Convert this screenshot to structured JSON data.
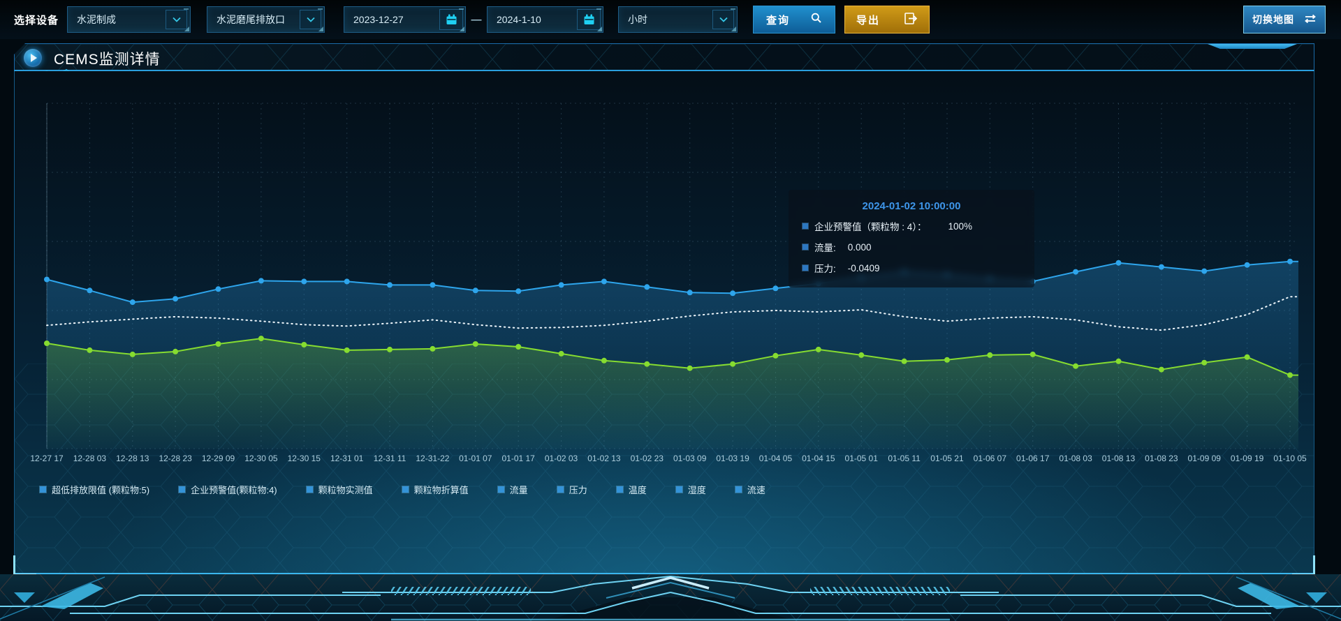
{
  "topbar": {
    "device_label": "选择设备",
    "selects": [
      {
        "value": "水泥制成"
      },
      {
        "value": "水泥磨尾排放口"
      }
    ],
    "date_start": "2023-12-27",
    "date_separator": "—",
    "date_end": "2024-1-10",
    "interval_value": "小时",
    "query_label": "查询",
    "export_label": "导出",
    "switch_map_label": "切换地图"
  },
  "panel": {
    "title": "CEMS监测详情"
  },
  "tooltip": {
    "title": "2024-01-02 10:00:00",
    "rows": [
      {
        "label": "企业预警值（颗粒物 : 4）：",
        "value": "100%"
      },
      {
        "label": "流量:",
        "value": "0.000"
      },
      {
        "label": "压力:",
        "value": "-0.0409"
      }
    ]
  },
  "legend": [
    "超低排放限值 (颗粒物:5)",
    "企业预警值(颗粒物:4)",
    "颗粒物实测值",
    "颗粒物折算值",
    "流量",
    "压力",
    "温度",
    "湿度",
    "流速"
  ],
  "colors": {
    "accent_cyan": "#29d3f5",
    "query_blue": "#1578b4",
    "export_orange": "#c98f16",
    "line_blue": "#2ea5ec",
    "line_green": "#86dc30",
    "line_dotted_white": "#eef6fb",
    "tooltip_title_blue": "#3e96ea",
    "legend_marker_blue": "#3493d8"
  },
  "chart_data": {
    "type": "line",
    "title": "",
    "xlabel": "",
    "ylabel": "",
    "x": [
      "12-27 17",
      "12-28 03",
      "12-28 13",
      "12-28 23",
      "12-29 09",
      "12-30 05",
      "12-30 15",
      "12-31 01",
      "12-31 11",
      "12-31-22",
      "01-01 07",
      "01-01 17",
      "01-02 03",
      "01-02 13",
      "01-02 23",
      "01-03 09",
      "01-03 19",
      "01-04 05",
      "01-04 15",
      "01-05 01",
      "01-05 11",
      "01-05 21",
      "01-06 07",
      "01-06 17",
      "01-08 03",
      "01-08 13",
      "01-08 23",
      "01-09 09",
      "01-09 19",
      "01-10 05"
    ],
    "y_axis_ticks": [],
    "ylim": [
      0,
      100
    ],
    "grid": "dashed",
    "legend_position": "bottom-left",
    "note": "no y-axis tick labels are shown on screen; series values are estimated as percent of plot height",
    "series": [
      {
        "name": "blue-line",
        "color": "#2ea5ec",
        "style": "solid",
        "markers": true,
        "area": true,
        "values": [
          49,
          45.8,
          42.4,
          43.4,
          46.2,
          48.6,
          48.4,
          48.4,
          47.4,
          47.4,
          45.8,
          45.6,
          47.4,
          48.4,
          46.8,
          45.2,
          45,
          46.4,
          47.8,
          49.6,
          51.2,
          50.4,
          49.2,
          48.4,
          51.2,
          53.8,
          52.6,
          51.4,
          53.2,
          54.2
        ]
      },
      {
        "name": "dotted-white-line",
        "color": "#eef6fb",
        "style": "dotted",
        "markers": false,
        "area": false,
        "values": [
          35.7,
          36.7,
          37.5,
          38.2,
          37.8,
          36.9,
          35.9,
          35.5,
          36.3,
          37.3,
          35.9,
          34.9,
          35.1,
          35.7,
          36.9,
          38.4,
          39.6,
          40,
          39.6,
          40.2,
          38.2,
          36.9,
          37.8,
          38.2,
          37.3,
          35.3,
          34.3,
          35.9,
          38.8,
          44
        ]
      },
      {
        "name": "green-line",
        "color": "#86dc30",
        "style": "solid",
        "markers": true,
        "area": true,
        "values": [
          30.5,
          28.5,
          27.3,
          28.1,
          30.3,
          31.9,
          30.1,
          28.5,
          28.7,
          28.9,
          30.3,
          29.5,
          27.5,
          25.5,
          24.5,
          23.3,
          24.5,
          26.9,
          28.7,
          27.1,
          25.3,
          25.7,
          27.1,
          27.3,
          23.9,
          25.3,
          22.9,
          24.9,
          26.5,
          21.3
        ]
      }
    ]
  }
}
